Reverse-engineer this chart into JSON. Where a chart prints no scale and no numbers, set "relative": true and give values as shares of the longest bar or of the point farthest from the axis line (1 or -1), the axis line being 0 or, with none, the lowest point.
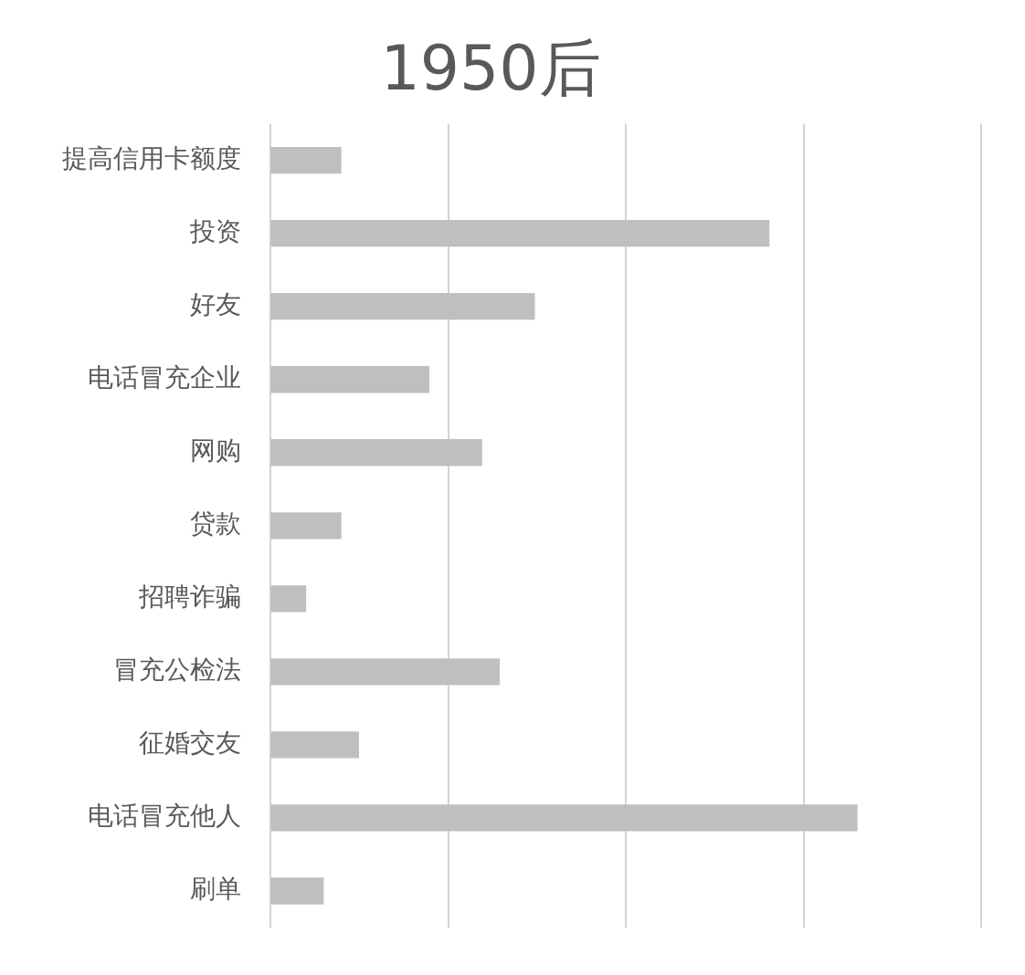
{
  "chart_data": {
    "type": "bar",
    "title": "1950后",
    "orientation": "horizontal",
    "relative": true,
    "categories": [
      "提高信用卡额度",
      "投资",
      "好友",
      "电话冒充企业",
      "网购",
      "贷款",
      "招聘诈骗",
      "冒充公检法",
      "征婚交友",
      "电话冒充他人",
      "刷单"
    ],
    "values": [
      0.12,
      0.85,
      0.45,
      0.27,
      0.36,
      0.12,
      0.06,
      0.39,
      0.15,
      1,
      0.09
    ],
    "color": "#bfbfbf",
    "grid": "x"
  }
}
